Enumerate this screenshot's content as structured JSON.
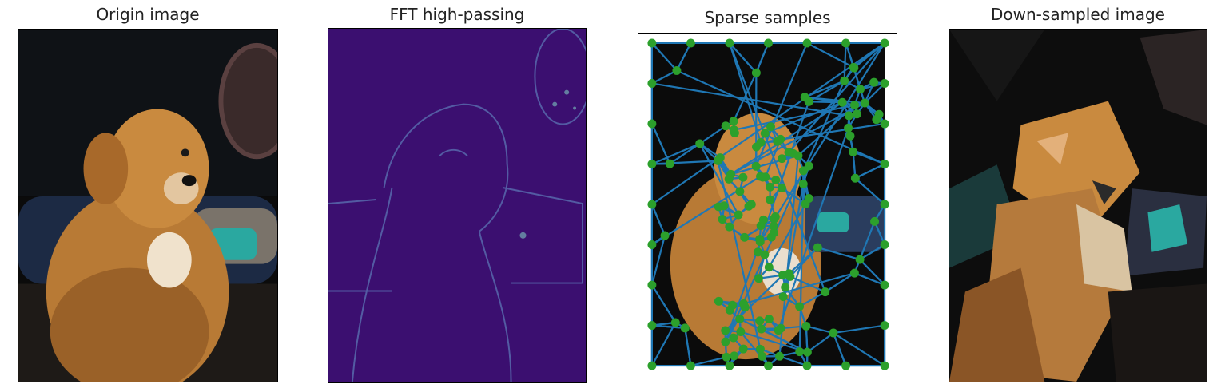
{
  "panels": [
    {
      "title": "Origin image"
    },
    {
      "title": "FFT high-passing"
    },
    {
      "title": "Sparse samples"
    },
    {
      "title": "Down-sampled image"
    }
  ],
  "colors": {
    "background": "#ffffff",
    "frame": "#000000",
    "mesh_edge": "#1f77b4",
    "sample_point": "#2ca02c",
    "fft_background": "#3b0f70",
    "fft_edges": "#5a6fb0",
    "dog_fur": "#c98a3f",
    "scene_dark": "#0b0b0b",
    "cushion_teal": "#2aa8a0"
  }
}
